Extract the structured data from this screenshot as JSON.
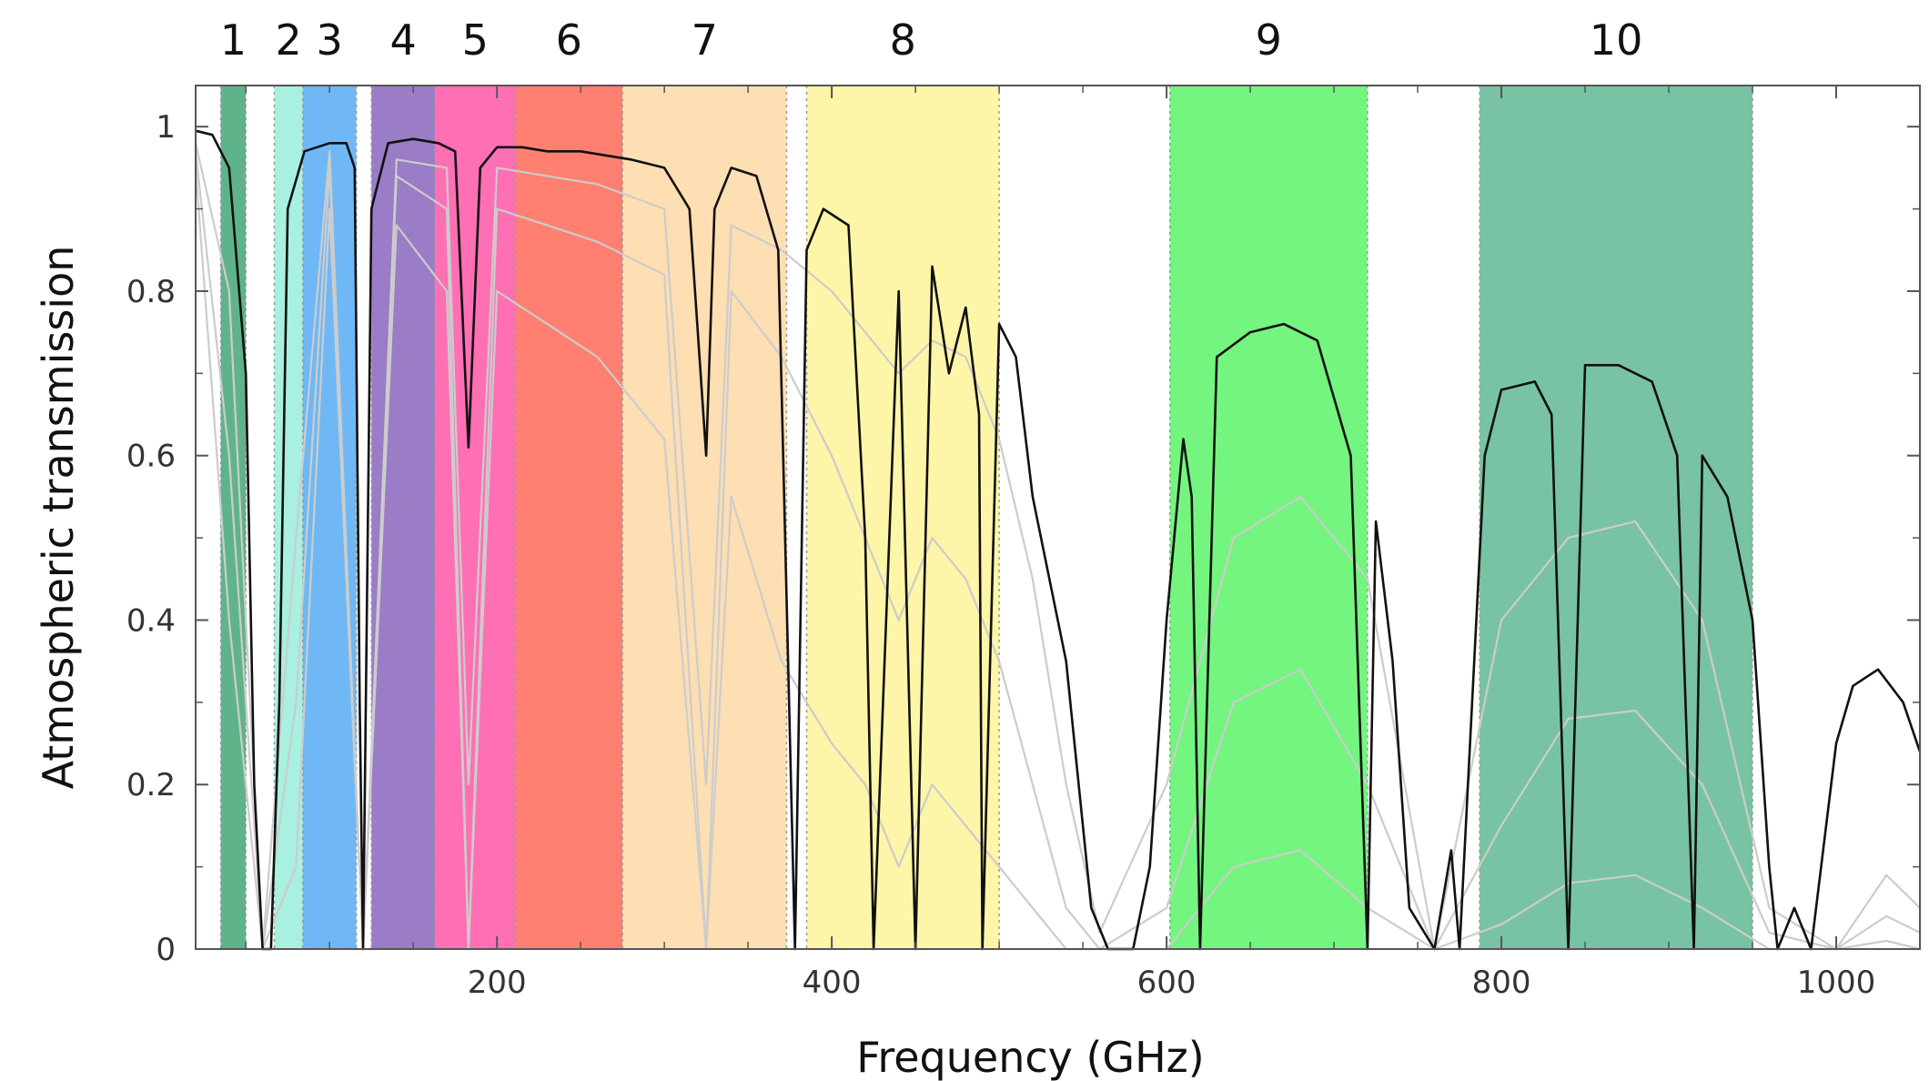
{
  "chart_data": {
    "type": "line",
    "title": "",
    "xlabel": "Frequency (GHz)",
    "ylabel": "Atmospheric transmission",
    "xlim": [
      20,
      1050
    ],
    "ylim": [
      0,
      1.05
    ],
    "x_ticks": [
      200,
      400,
      600,
      800,
      1000
    ],
    "y_ticks": [
      0,
      0.2,
      0.4,
      0.6,
      0.8,
      1
    ],
    "y_tick_labels": [
      "0",
      "0.2",
      "0.4",
      "0.6",
      "0.8",
      "1"
    ],
    "x_tick_labels": [
      "200",
      "400",
      "600",
      "800",
      "1000"
    ],
    "grid": false,
    "bands": [
      {
        "label": "1",
        "range": [
          35,
          50
        ],
        "color": "#5fb38a"
      },
      {
        "label": "2",
        "range": [
          67,
          84
        ],
        "color": "#a8f0e0"
      },
      {
        "label": "3",
        "range": [
          84,
          116
        ],
        "color": "#6fb8f5"
      },
      {
        "label": "4",
        "range": [
          125,
          163
        ],
        "color": "#9b7cc6"
      },
      {
        "label": "5",
        "range": [
          163,
          211
        ],
        "color": "#ff6fb4"
      },
      {
        "label": "6",
        "range": [
          211,
          275
        ],
        "color": "#ff8070"
      },
      {
        "label": "7",
        "range": [
          275,
          373
        ],
        "color": "#fddfb3"
      },
      {
        "label": "8",
        "range": [
          385,
          500
        ],
        "color": "#fdf6a8"
      },
      {
        "label": "9",
        "range": [
          602,
          720
        ],
        "color": "#74f57f"
      },
      {
        "label": "10",
        "range": [
          787,
          950
        ],
        "color": "#78c3a3"
      }
    ],
    "series": [
      {
        "color": "#111111",
        "x": [
          20,
          30,
          40,
          50,
          55,
          60,
          65,
          70,
          75,
          85,
          100,
          110,
          115,
          118,
          120,
          125,
          135,
          150,
          165,
          175,
          183,
          190,
          200,
          215,
          230,
          250,
          280,
          300,
          315,
          325,
          330,
          340,
          355,
          368,
          378,
          385,
          395,
          410,
          420,
          425,
          440,
          450,
          460,
          470,
          480,
          488,
          490,
          500,
          510,
          520,
          540,
          555,
          565,
          580,
          590,
          600,
          610,
          615,
          620,
          630,
          650,
          670,
          690,
          710,
          720,
          725,
          735,
          745,
          760,
          770,
          775,
          790,
          800,
          820,
          830,
          840,
          850,
          870,
          890,
          905,
          915,
          920,
          935,
          950,
          960,
          965,
          975,
          985,
          1000,
          1010,
          1025,
          1040,
          1050
        ],
        "y": [
          0.995,
          0.99,
          0.95,
          0.7,
          0.2,
          0.0,
          0.0,
          0.3,
          0.9,
          0.97,
          0.98,
          0.98,
          0.95,
          0.3,
          0.0,
          0.9,
          0.98,
          0.985,
          0.98,
          0.97,
          0.61,
          0.95,
          0.975,
          0.975,
          0.97,
          0.97,
          0.96,
          0.95,
          0.9,
          0.6,
          0.9,
          0.95,
          0.94,
          0.85,
          0.0,
          0.85,
          0.9,
          0.88,
          0.5,
          0.0,
          0.8,
          0.0,
          0.83,
          0.7,
          0.78,
          0.65,
          0.0,
          0.76,
          0.72,
          0.55,
          0.35,
          0.05,
          0.0,
          0.0,
          0.1,
          0.4,
          0.62,
          0.55,
          0.0,
          0.72,
          0.75,
          0.76,
          0.74,
          0.6,
          0.0,
          0.52,
          0.35,
          0.05,
          0.0,
          0.12,
          0.0,
          0.6,
          0.68,
          0.69,
          0.65,
          0.0,
          0.71,
          0.71,
          0.69,
          0.6,
          0.0,
          0.6,
          0.55,
          0.4,
          0.1,
          0.0,
          0.05,
          0.0,
          0.25,
          0.32,
          0.34,
          0.3,
          0.24
        ]
      },
      {
        "color": "#cccccc",
        "x": [
          20,
          40,
          60,
          80,
          100,
          120,
          140,
          170,
          183,
          200,
          230,
          260,
          300,
          325,
          340,
          370,
          400,
          420,
          440,
          460,
          480,
          500,
          520,
          540,
          560,
          600,
          640,
          680,
          720,
          760,
          800,
          840,
          880,
          920,
          960,
          1000,
          1030,
          1050
        ],
        "y": [
          0.98,
          0.8,
          0.0,
          0.5,
          0.97,
          0.0,
          0.96,
          0.95,
          0.2,
          0.95,
          0.94,
          0.93,
          0.9,
          0.2,
          0.88,
          0.85,
          0.8,
          0.75,
          0.7,
          0.74,
          0.72,
          0.62,
          0.45,
          0.2,
          0.02,
          0.2,
          0.5,
          0.55,
          0.45,
          0.0,
          0.4,
          0.5,
          0.52,
          0.4,
          0.05,
          0.0,
          0.09,
          0.05
        ]
      },
      {
        "color": "#cccccc",
        "x": [
          20,
          40,
          60,
          80,
          100,
          120,
          140,
          170,
          183,
          200,
          230,
          260,
          300,
          325,
          340,
          370,
          400,
          420,
          440,
          460,
          480,
          500,
          520,
          540,
          560,
          600,
          640,
          680,
          720,
          760,
          800,
          840,
          880,
          920,
          960,
          1000,
          1030,
          1050
        ],
        "y": [
          0.97,
          0.6,
          0.0,
          0.3,
          0.95,
          0.0,
          0.94,
          0.9,
          0.0,
          0.9,
          0.88,
          0.86,
          0.82,
          0.0,
          0.8,
          0.72,
          0.6,
          0.5,
          0.4,
          0.5,
          0.45,
          0.35,
          0.2,
          0.05,
          0.0,
          0.05,
          0.3,
          0.34,
          0.2,
          0.0,
          0.15,
          0.28,
          0.29,
          0.2,
          0.02,
          0.0,
          0.04,
          0.02
        ]
      },
      {
        "color": "#cccccc",
        "x": [
          20,
          40,
          60,
          80,
          100,
          120,
          140,
          170,
          183,
          200,
          230,
          260,
          300,
          325,
          340,
          370,
          400,
          420,
          440,
          460,
          480,
          500,
          520,
          540,
          560,
          600,
          640,
          680,
          720,
          760,
          800,
          840,
          880,
          920,
          960,
          1000,
          1030,
          1050
        ],
        "y": [
          0.95,
          0.4,
          0.0,
          0.1,
          0.9,
          0.0,
          0.88,
          0.8,
          0.0,
          0.8,
          0.76,
          0.72,
          0.62,
          0.0,
          0.55,
          0.35,
          0.25,
          0.2,
          0.1,
          0.2,
          0.15,
          0.1,
          0.05,
          0.0,
          0.0,
          0.0,
          0.1,
          0.12,
          0.05,
          0.0,
          0.03,
          0.08,
          0.09,
          0.05,
          0.0,
          0.0,
          0.01,
          0.0
        ]
      }
    ]
  }
}
